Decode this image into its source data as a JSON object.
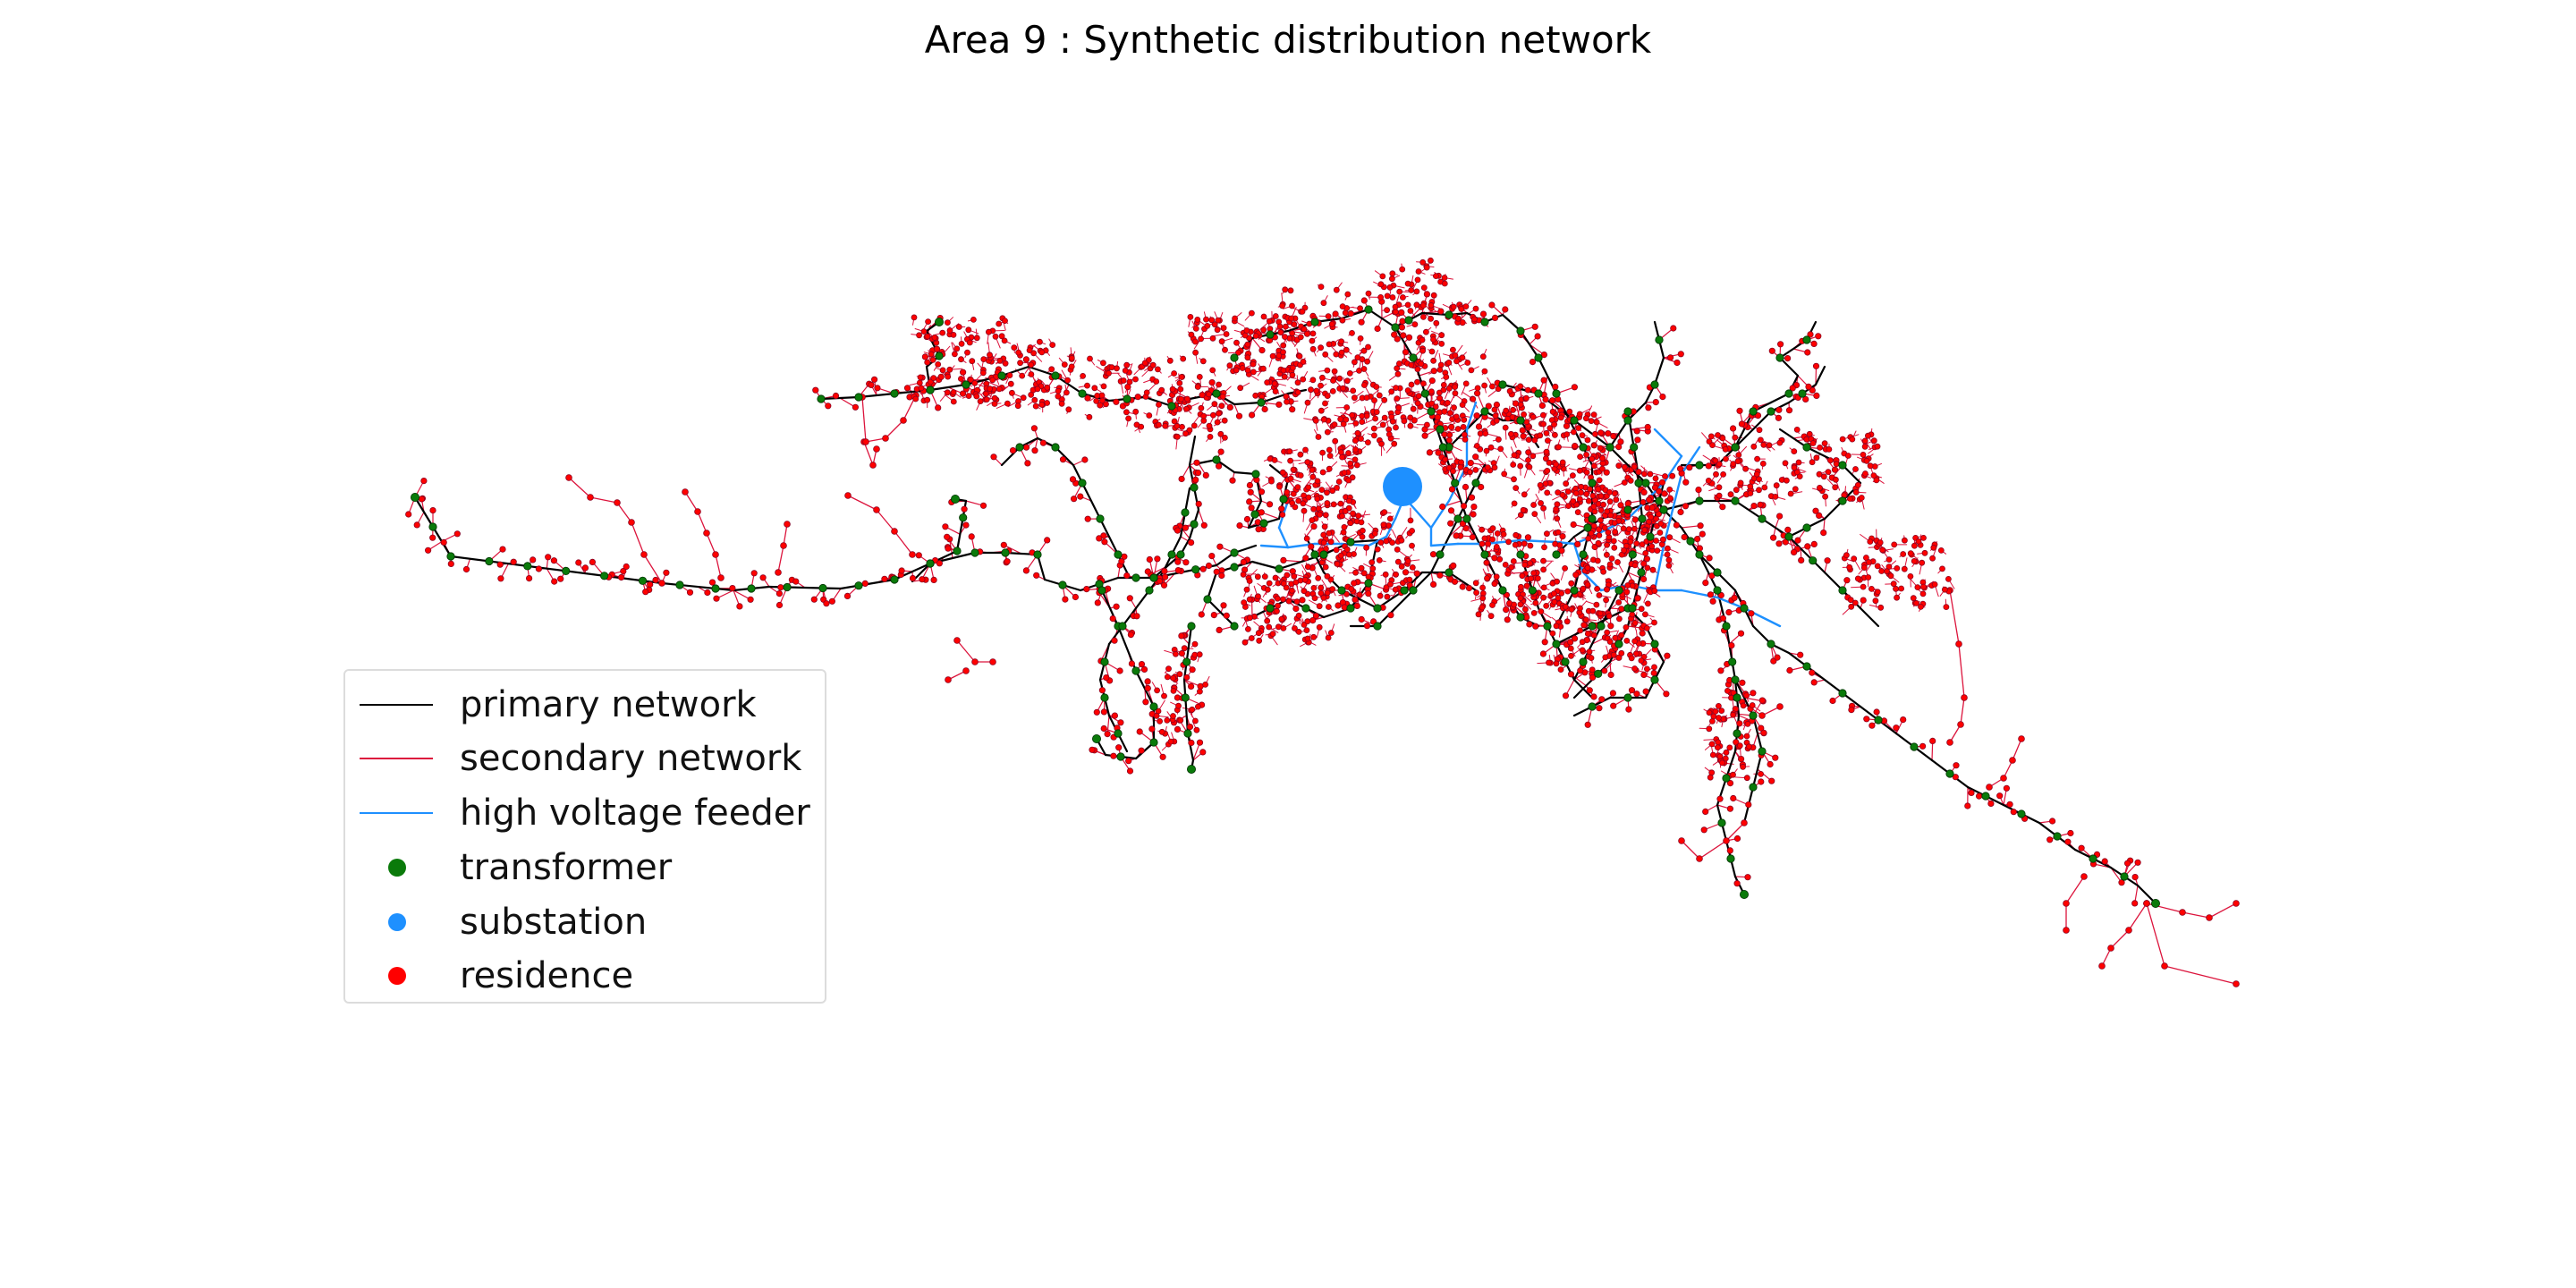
{
  "title": "Area 9 : Synthetic distribution network",
  "legend": {
    "placement": "lower-left",
    "items": [
      {
        "label": "primary network",
        "kind": "line",
        "color": "#000000"
      },
      {
        "label": "secondary network",
        "kind": "line",
        "color": "#dc143c"
      },
      {
        "label": "high voltage feeder",
        "kind": "line",
        "color": "#1e90ff"
      },
      {
        "label": "transformer",
        "kind": "dot",
        "color": "#0a7a0a"
      },
      {
        "label": "substation",
        "kind": "dot",
        "color": "#1e90ff"
      },
      {
        "label": "residence",
        "kind": "dot",
        "color": "#ff0000"
      }
    ]
  },
  "colors": {
    "primary": "#000000",
    "secondary": "#dc143c",
    "feeder": "#1e90ff",
    "transformer": "#0a7a0a",
    "substation": "#1e90ff",
    "residence": "#ff0000"
  }
}
